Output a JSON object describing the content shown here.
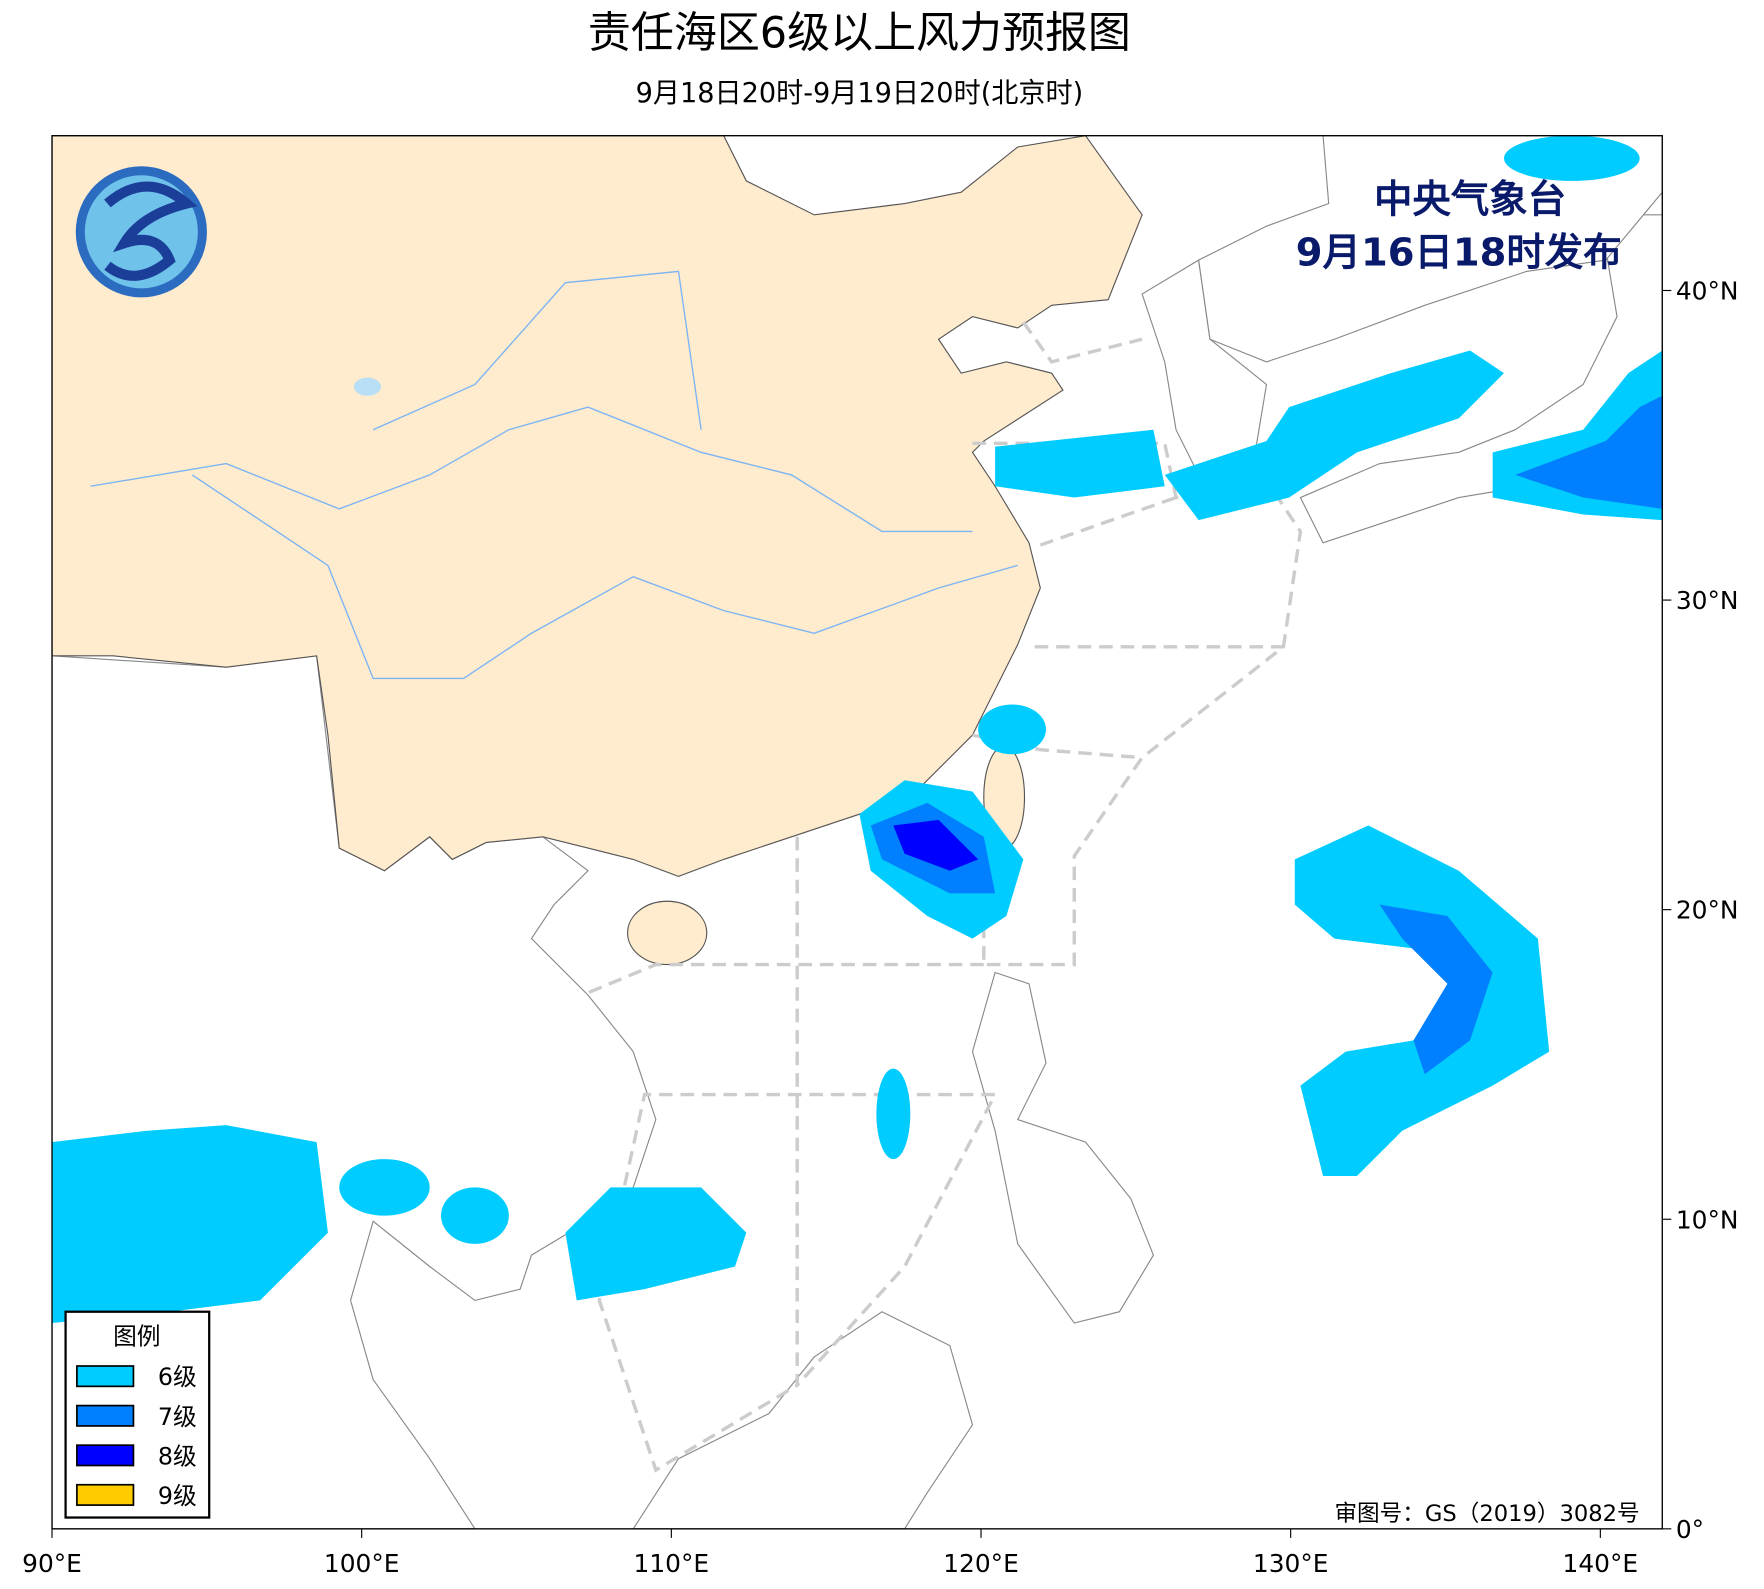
{
  "title": "责任海区6级以上风力预报图",
  "subtitle": "9月18日20时-9月19日20时(北京时)",
  "issuer": "中央气象台",
  "issue_time": "9月16日18时发布",
  "approval": "审图号：GS（2019）3082号",
  "legend": {
    "title": "图例",
    "items": [
      {
        "label": "6级",
        "color": "#00ccff"
      },
      {
        "label": "7级",
        "color": "#0080ff"
      },
      {
        "label": "8级",
        "color": "#0000ff"
      },
      {
        "label": "9级",
        "color": "#ffcc00"
      }
    ]
  },
  "map": {
    "xlim": [
      90,
      142
    ],
    "ylim": [
      0,
      45
    ],
    "xticks": [
      {
        "value": 90,
        "label": "90°E"
      },
      {
        "value": 100,
        "label": "100°E"
      },
      {
        "value": 110,
        "label": "110°E"
      },
      {
        "value": 120,
        "label": "120°E"
      },
      {
        "value": 130,
        "label": "130°E"
      },
      {
        "value": 140,
        "label": "140°E"
      }
    ],
    "yticks": [
      {
        "value": 0,
        "label": "0°"
      },
      {
        "value": 10,
        "label": "10°N"
      },
      {
        "value": 20,
        "label": "20°N"
      },
      {
        "value": 30,
        "label": "30°N"
      },
      {
        "value": 40,
        "label": "40°N"
      }
    ]
  }
}
